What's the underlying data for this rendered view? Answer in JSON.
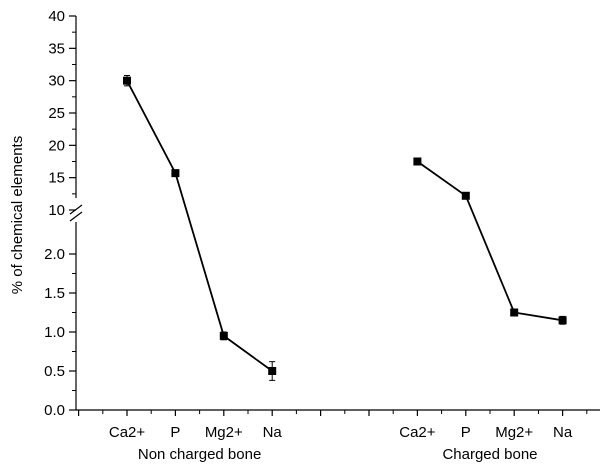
{
  "chart_data": {
    "type": "line",
    "ylabel": "% of chemical elements",
    "y_axis_break": true,
    "yticks_lower": [
      "0.0",
      "0.5",
      "1.0",
      "1.5",
      "2.0"
    ],
    "yticks_upper": [
      "10",
      "15",
      "20",
      "25",
      "30",
      "35",
      "40"
    ],
    "groups": [
      {
        "name": "Non charged bone",
        "categories": [
          "Ca2+",
          "P",
          "Mg2+",
          "Na"
        ],
        "values": [
          30.0,
          15.7,
          0.95,
          0.5
        ],
        "errors": [
          0.8,
          0.3,
          0.05,
          0.12
        ]
      },
      {
        "name": "Charged bone",
        "categories": [
          "Ca2+",
          "P",
          "Mg2+",
          "Na"
        ],
        "values": [
          17.5,
          12.2,
          1.25,
          1.15
        ],
        "errors": [
          0.4,
          0.25,
          0.03,
          0.05
        ]
      }
    ]
  }
}
